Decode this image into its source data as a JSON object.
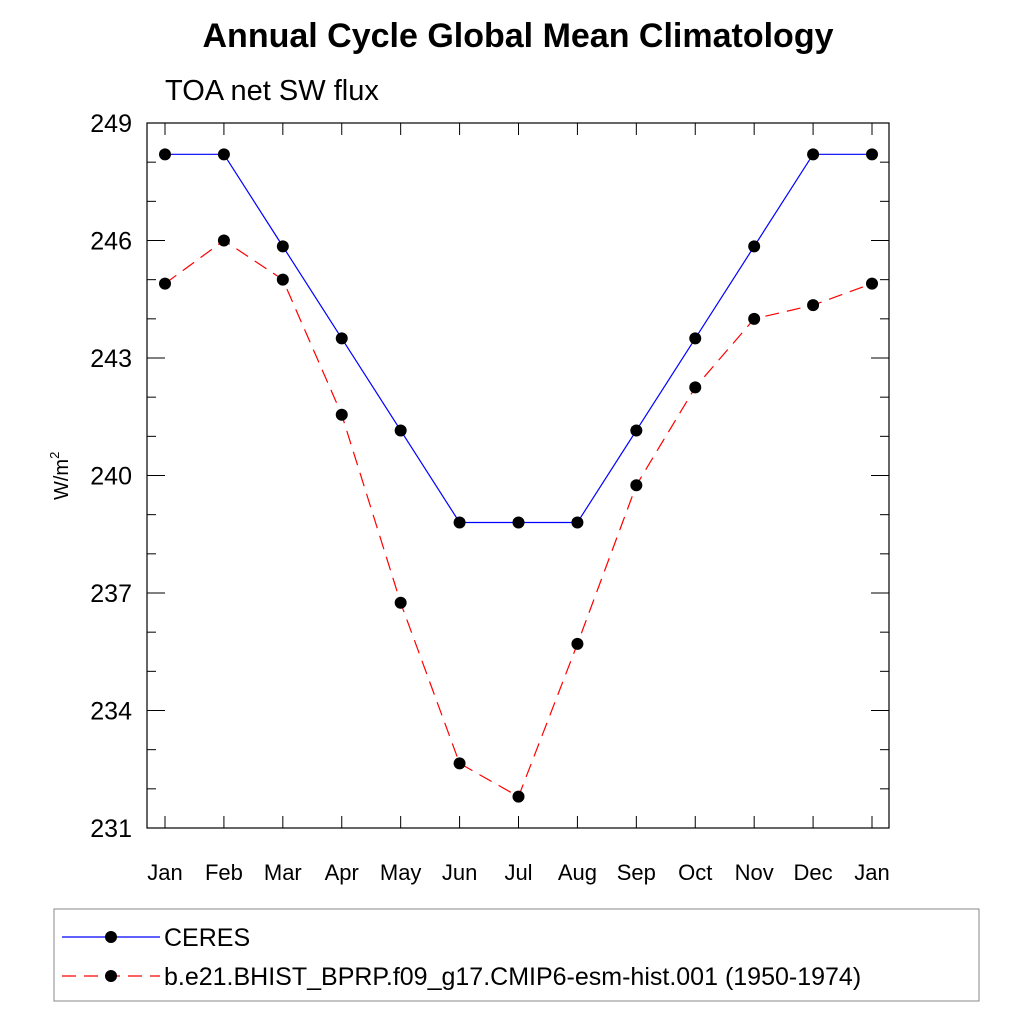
{
  "chart_data": {
    "type": "line",
    "title": "Annual Cycle Global Mean Climatology",
    "subtitle": "TOA net SW flux",
    "ylabel": "W/m",
    "ylabel_sup": "2",
    "categories": [
      "Jan",
      "Feb",
      "Mar",
      "Apr",
      "May",
      "Jun",
      "Jul",
      "Aug",
      "Sep",
      "Oct",
      "Nov",
      "Dec",
      "Jan"
    ],
    "ylim": [
      231,
      249
    ],
    "yticks": [
      231,
      234,
      237,
      240,
      243,
      246,
      249
    ],
    "grid": false,
    "legend_position": "bottom",
    "series": [
      {
        "name": "CERES",
        "color": "#0000ff",
        "dash": "solid",
        "marker": "filled-circle",
        "values": [
          248.2,
          248.2,
          245.85,
          243.5,
          241.15,
          238.8,
          238.8,
          238.8,
          241.15,
          243.5,
          245.85,
          248.2,
          248.2
        ]
      },
      {
        "name": "b.e21.BHIST_BPRP.f09_g17.CMIP6-esm-hist.001 (1950-1974)",
        "color": "#ff0000",
        "dash": "dashed",
        "marker": "filled-circle",
        "values": [
          244.9,
          246.0,
          245.0,
          241.55,
          236.75,
          232.65,
          231.8,
          235.7,
          239.75,
          242.25,
          244.0,
          244.35,
          244.9
        ]
      }
    ]
  }
}
